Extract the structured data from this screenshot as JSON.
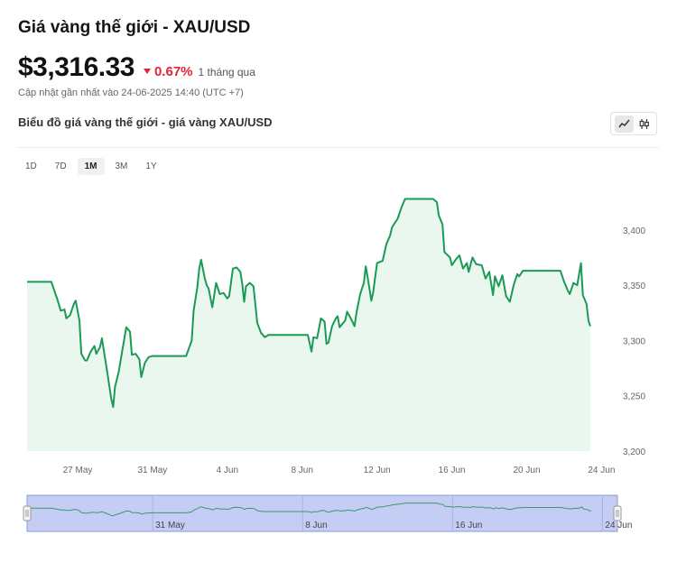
{
  "header": {
    "title": "Giá vàng thế giới - XAU/USD",
    "price": "$3,316.33",
    "change_pct": "0.67%",
    "change_period": "1 tháng qua",
    "updated": "Cập nhật gần nhất vào 24-06-2025 14:40 (UTC +7)"
  },
  "chart_section": {
    "title": "Biểu đồ giá vàng thế giới - giá vàng XAU/USD",
    "toggle_icons": [
      "line-chart-icon",
      "candlestick-icon"
    ],
    "ranges": [
      "1D",
      "7D",
      "1M",
      "3M",
      "1Y"
    ],
    "active_range": "1M"
  },
  "colors": {
    "line": "#1a9a55",
    "area_fill": "#e9f7ef",
    "down": "#e0243b",
    "navigator_fill": "#c5cdf5",
    "navigator_border": "#8d98d8"
  },
  "chart_data": {
    "type": "area",
    "x_ticks": [
      "27 May",
      "31 May",
      "4 Jun",
      "8 Jun",
      "12 Jun",
      "16 Jun",
      "20 Jun",
      "24 Jun"
    ],
    "y_ticks": [
      "3,200",
      "3,250",
      "3,300",
      "3,350",
      "3,400"
    ],
    "ylim": [
      3200,
      3430
    ],
    "xlim": [
      0,
      31.5
    ],
    "x_tick_positions": [
      2.7,
      6.7,
      10.7,
      14.7,
      18.7,
      22.7,
      26.7,
      30.7
    ],
    "navigator_ticks": [
      "31 May",
      "8 Jun",
      "16 Jun",
      "24 Jun"
    ],
    "navigator_tick_positions": [
      6.7,
      14.7,
      22.7,
      30.7
    ],
    "series": [
      {
        "values": [
          [
            0.0,
            3353
          ],
          [
            1.3,
            3353
          ],
          [
            1.6,
            3338
          ],
          [
            1.8,
            3327
          ],
          [
            2.0,
            3328
          ],
          [
            2.1,
            3320
          ],
          [
            2.3,
            3323
          ],
          [
            2.5,
            3333
          ],
          [
            2.6,
            3336
          ],
          [
            2.8,
            3318
          ],
          [
            2.9,
            3288
          ],
          [
            3.1,
            3282
          ],
          [
            3.2,
            3282
          ],
          [
            3.4,
            3290
          ],
          [
            3.6,
            3295
          ],
          [
            3.7,
            3288
          ],
          [
            3.9,
            3294
          ],
          [
            4.0,
            3302
          ],
          [
            4.3,
            3270
          ],
          [
            4.5,
            3247
          ],
          [
            4.6,
            3240
          ],
          [
            4.7,
            3258
          ],
          [
            4.9,
            3272
          ],
          [
            5.1,
            3292
          ],
          [
            5.3,
            3312
          ],
          [
            5.5,
            3308
          ],
          [
            5.6,
            3287
          ],
          [
            5.8,
            3288
          ],
          [
            6.0,
            3283
          ],
          [
            6.1,
            3267
          ],
          [
            6.3,
            3280
          ],
          [
            6.5,
            3285
          ],
          [
            6.7,
            3286
          ],
          [
            8.5,
            3286
          ],
          [
            8.8,
            3300
          ],
          [
            8.9,
            3327
          ],
          [
            9.1,
            3348
          ],
          [
            9.2,
            3365
          ],
          [
            9.3,
            3373
          ],
          [
            9.5,
            3356
          ],
          [
            9.6,
            3350
          ],
          [
            9.7,
            3347
          ],
          [
            9.9,
            3330
          ],
          [
            10.1,
            3352
          ],
          [
            10.3,
            3342
          ],
          [
            10.5,
            3343
          ],
          [
            10.7,
            3338
          ],
          [
            10.8,
            3340
          ],
          [
            11.0,
            3365
          ],
          [
            11.2,
            3366
          ],
          [
            11.4,
            3362
          ],
          [
            11.5,
            3351
          ],
          [
            11.6,
            3335
          ],
          [
            11.7,
            3349
          ],
          [
            11.9,
            3352
          ],
          [
            12.1,
            3349
          ],
          [
            12.3,
            3316
          ],
          [
            12.5,
            3307
          ],
          [
            12.7,
            3303
          ],
          [
            12.9,
            3305
          ],
          [
            15.0,
            3305
          ],
          [
            15.2,
            3290
          ],
          [
            15.3,
            3303
          ],
          [
            15.5,
            3302
          ],
          [
            15.7,
            3320
          ],
          [
            15.9,
            3317
          ],
          [
            16.0,
            3297
          ],
          [
            16.1,
            3298
          ],
          [
            16.3,
            3313
          ],
          [
            16.5,
            3320
          ],
          [
            16.6,
            3322
          ],
          [
            16.7,
            3312
          ],
          [
            17.0,
            3318
          ],
          [
            17.1,
            3326
          ],
          [
            17.3,
            3320
          ],
          [
            17.5,
            3313
          ],
          [
            17.6,
            3325
          ],
          [
            17.8,
            3342
          ],
          [
            18.0,
            3352
          ],
          [
            18.1,
            3367
          ],
          [
            18.2,
            3357
          ],
          [
            18.4,
            3336
          ],
          [
            18.5,
            3344
          ],
          [
            18.7,
            3370
          ],
          [
            19.0,
            3372
          ],
          [
            19.2,
            3387
          ],
          [
            19.4,
            3395
          ],
          [
            19.5,
            3402
          ],
          [
            19.6,
            3405
          ],
          [
            19.8,
            3410
          ],
          [
            20.0,
            3420
          ],
          [
            20.2,
            3428
          ],
          [
            21.7,
            3428
          ],
          [
            21.9,
            3425
          ],
          [
            22.0,
            3413
          ],
          [
            22.2,
            3405
          ],
          [
            22.3,
            3380
          ],
          [
            22.6,
            3375
          ],
          [
            22.7,
            3368
          ],
          [
            22.9,
            3373
          ],
          [
            23.1,
            3377
          ],
          [
            23.3,
            3365
          ],
          [
            23.5,
            3370
          ],
          [
            23.6,
            3362
          ],
          [
            23.8,
            3375
          ],
          [
            24.0,
            3369
          ],
          [
            24.3,
            3368
          ],
          [
            24.5,
            3356
          ],
          [
            24.7,
            3362
          ],
          [
            24.9,
            3341
          ],
          [
            25.0,
            3358
          ],
          [
            25.2,
            3349
          ],
          [
            25.4,
            3359
          ],
          [
            25.6,
            3340
          ],
          [
            25.8,
            3335
          ],
          [
            26.0,
            3350
          ],
          [
            26.2,
            3360
          ],
          [
            26.3,
            3358
          ],
          [
            26.5,
            3363
          ],
          [
            28.5,
            3363
          ],
          [
            28.7,
            3353
          ],
          [
            28.9,
            3345
          ],
          [
            29.0,
            3342
          ],
          [
            29.2,
            3352
          ],
          [
            29.4,
            3350
          ],
          [
            29.6,
            3370
          ],
          [
            29.7,
            3341
          ],
          [
            29.9,
            3333
          ],
          [
            30.0,
            3318
          ],
          [
            30.1,
            3313
          ]
        ]
      }
    ]
  }
}
